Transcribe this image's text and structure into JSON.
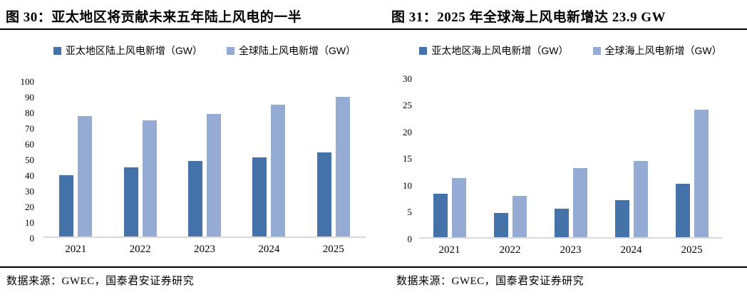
{
  "chart_data": [
    {
      "type": "bar",
      "title": "图 30：亚太地区将贡献未来五年陆上风电的一半",
      "categories": [
        "2021",
        "2022",
        "2023",
        "2024",
        "2025"
      ],
      "series": [
        {
          "name": "亚太地区陆上风电新增（GW）",
          "color": "#4573a9",
          "values": [
            39,
            44,
            48,
            50.5,
            53.5
          ]
        },
        {
          "name": "全球陆上风电新增（GW）",
          "color": "#95abd4",
          "values": [
            77,
            74,
            78,
            84,
            89
          ]
        }
      ],
      "xlabel": "",
      "ylabel": "",
      "ylim": [
        0,
        100
      ],
      "ytick_step": 10,
      "grid": false,
      "legend_position": "top",
      "source": "数据来源：GWEC，国泰君安证券研究"
    },
    {
      "type": "bar",
      "title": "图 31：2025 年全球海上风电新增达 23.9 GW",
      "categories": [
        "2021",
        "2022",
        "2023",
        "2024",
        "2025"
      ],
      "series": [
        {
          "name": "亚太地区海上风电新增（GW）",
          "color": "#4573a9",
          "values": [
            8.2,
            4.5,
            5.3,
            7,
            10
          ]
        },
        {
          "name": "全球海上风电新增（GW）",
          "color": "#95abd4",
          "values": [
            11.1,
            7.7,
            13,
            14.3,
            23.9
          ]
        }
      ],
      "xlabel": "",
      "ylabel": "",
      "ylim": [
        0,
        30
      ],
      "ytick_step": 5,
      "grid": false,
      "legend_position": "top",
      "source": "数据来源：GWEC，国泰君安证券研究"
    }
  ],
  "colors": {
    "bar_dark": "#4573a9",
    "bar_light": "#95abd4",
    "axis_line": "#d9d9d9",
    "rule": "#000000"
  }
}
